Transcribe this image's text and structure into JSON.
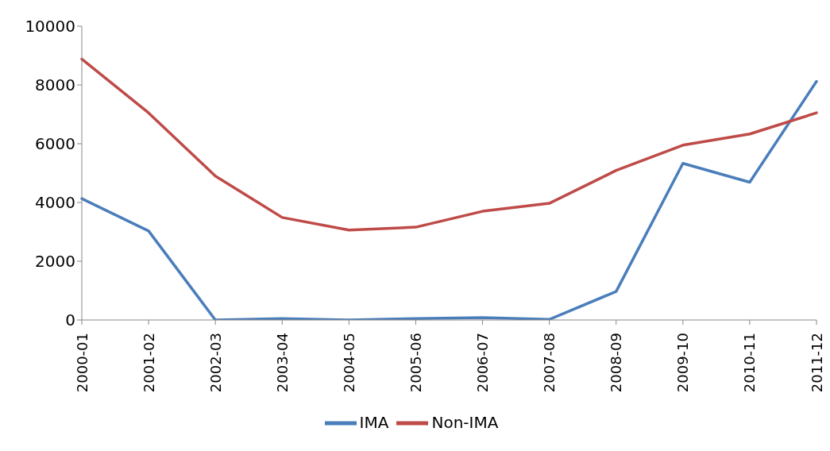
{
  "chart_data": {
    "type": "line",
    "categories": [
      "2000-01",
      "2001-02",
      "2002-03",
      "2003-04",
      "2004-05",
      "2005-06",
      "2006-07",
      "2007-08",
      "2008-09",
      "2009-10",
      "2010-11",
      "2011-12"
    ],
    "series": [
      {
        "name": "IMA",
        "color": "#4a7ebb",
        "values": [
          4130,
          3030,
          0,
          50,
          0,
          50,
          80,
          20,
          970,
          5330,
          4690,
          8120
        ]
      },
      {
        "name": "Non-IMA",
        "color": "#be4b48",
        "values": [
          8880,
          7050,
          4900,
          3490,
          3060,
          3160,
          3700,
          3970,
          5090,
          5950,
          6330,
          7050
        ]
      }
    ],
    "ylim": [
      0,
      10000
    ],
    "yticks": [
      0,
      2000,
      4000,
      6000,
      8000,
      10000
    ],
    "grid": false,
    "legend": "bottom",
    "marker": "none",
    "line_style": "solid"
  }
}
